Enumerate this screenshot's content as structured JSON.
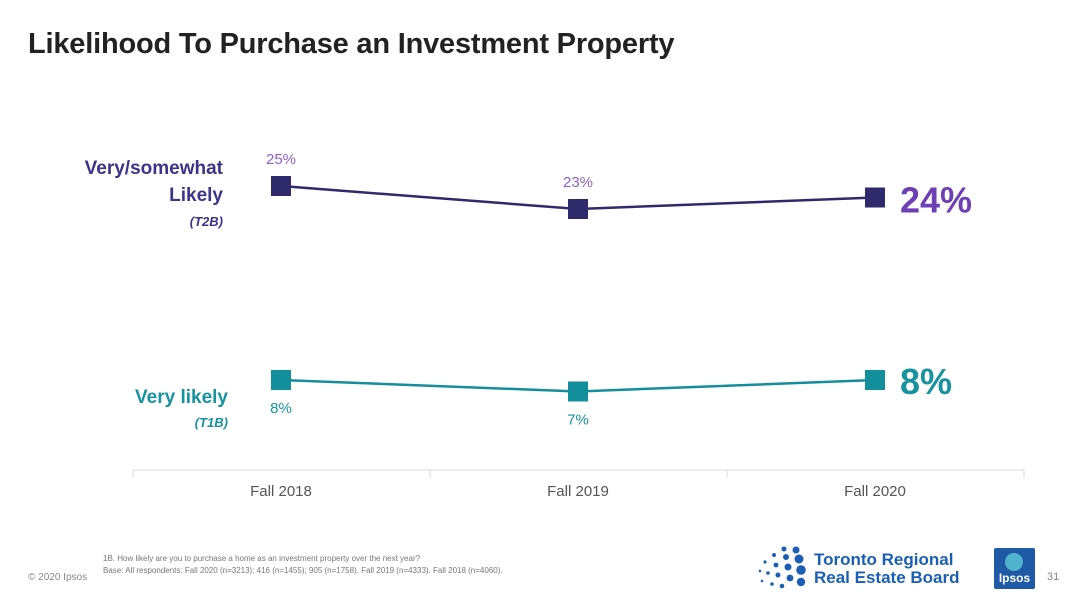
{
  "page": {
    "title": "Likelihood To Purchase an Investment Property",
    "footnote_line1": "1B. How likely are you to purchase a home as an investment property over the next year?",
    "footnote_line2": "Base: All respondents: Fall 2020 (n=3213); 416 (n=1455); 905 (n=1758). Fall 2019 (n=4333). Fall 2018 (n=4060).",
    "copyright": "© 2020 Ipsos",
    "page_number": "31",
    "trreb_line1": "Toronto Regional",
    "trreb_line2": "Real Estate Board",
    "ipsos_label": "Ipsos"
  },
  "chart_data": {
    "type": "line",
    "categories": [
      "Fall 2018",
      "Fall 2019",
      "Fall 2020"
    ],
    "series": [
      {
        "label_line1": "Very/somewhat",
        "label_line2": "Likely",
        "label_code": "(T2B)",
        "values": [
          25,
          23,
          24
        ],
        "data_labels": [
          "25%",
          "23%"
        ],
        "final_label": "24%",
        "color": "#2f2a6b",
        "label_color": "#3b3489",
        "data_label_color": "#8b63c6",
        "final_label_color": "#6f3fb5"
      },
      {
        "label_line1": "Very likely",
        "label_code": "(T1B)",
        "values": [
          8,
          7,
          8
        ],
        "data_labels": [
          "8%",
          "7%"
        ],
        "final_label": "8%",
        "color": "#138f9c",
        "label_color": "#16939f",
        "data_label_color": "#16939f",
        "final_label_color": "#16939f"
      }
    ],
    "grid": false,
    "legend": "left"
  }
}
